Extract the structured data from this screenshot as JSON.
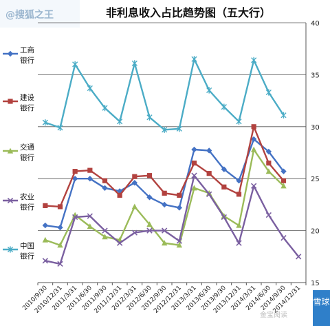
{
  "watermark_top": "@搜狐之王",
  "watermark_bottom": "金宝阅读",
  "badge_text": "雪球",
  "chart_data": {
    "type": "line",
    "title": "非利息收入占比趋势图（五大行）",
    "xlabel": "",
    "ylabel": "",
    "ylim": [
      15,
      40
    ],
    "yticks": [
      15,
      20,
      25,
      30,
      35,
      40
    ],
    "grid": "horizontal",
    "legend_position": "left",
    "x": [
      "2010/9/30",
      "2010/12/31",
      "2011/3/31",
      "2011/6/30",
      "2011/9/30",
      "2011/12/31",
      "2012/3/31",
      "2012/6/30",
      "2012/9/30",
      "2012/12/31",
      "2013/3/31",
      "2013/6/30",
      "2013/9/30",
      "2013/12/31",
      "2014/3/31",
      "2014/6/30",
      "2014/9/30",
      "2014/12/31"
    ],
    "series": [
      {
        "name": "工商银行",
        "color": "#4472c4",
        "marker": "diamond",
        "values": [
          20.5,
          20.3,
          25.0,
          25.0,
          24.1,
          23.8,
          24.6,
          23.2,
          22.5,
          22.2,
          27.8,
          27.7,
          25.9,
          24.8,
          28.8,
          27.6,
          25.7,
          null
        ]
      },
      {
        "name": "建设银行",
        "color": "#b2423f",
        "marker": "square",
        "values": [
          22.4,
          22.3,
          25.7,
          25.8,
          24.8,
          23.4,
          25.2,
          25.3,
          23.6,
          23.4,
          26.5,
          25.5,
          24.2,
          23.5,
          30.0,
          26.5,
          24.8,
          null
        ]
      },
      {
        "name": "交通银行",
        "color": "#9bbb59",
        "marker": "triangle",
        "values": [
          19.1,
          18.6,
          21.5,
          20.4,
          19.4,
          19.1,
          22.3,
          20.6,
          18.8,
          18.6,
          24.1,
          23.6,
          21.4,
          20.5,
          27.8,
          25.7,
          24.3,
          null
        ]
      },
      {
        "name": "农业银行",
        "color": "#7a5fa0",
        "marker": "x",
        "values": [
          17.1,
          16.8,
          21.3,
          21.4,
          20.0,
          18.8,
          19.8,
          20.0,
          20.0,
          19.0,
          25.3,
          23.5,
          21.3,
          18.8,
          24.3,
          21.5,
          19.3,
          17.5
        ]
      },
      {
        "name": "中国银行",
        "color": "#4bacc6",
        "marker": "star",
        "values": [
          30.4,
          29.9,
          36.0,
          33.7,
          31.8,
          30.5,
          36.1,
          30.9,
          29.7,
          29.8,
          36.5,
          33.5,
          31.9,
          30.5,
          36.4,
          33.3,
          31.1,
          null
        ]
      }
    ]
  }
}
